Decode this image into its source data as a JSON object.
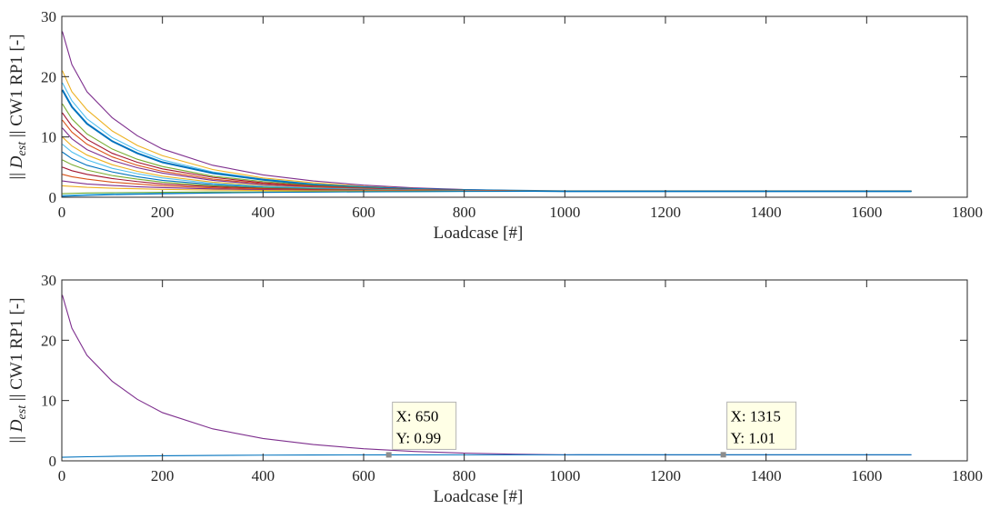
{
  "chart_data": [
    {
      "type": "line",
      "xlabel": "Loadcase [#]",
      "ylabel_prefix": "|| ",
      "ylabel_symbol": "D",
      "ylabel_subscript": "est",
      "ylabel_suffix": " || CW1 RP1 [-]",
      "xlim": [
        0,
        1800
      ],
      "ylim": [
        0,
        30
      ],
      "xticks": [
        "0",
        "200",
        "400",
        "600",
        "800",
        "1000",
        "1200",
        "1400",
        "1600",
        "1800"
      ],
      "yticks": [
        "0",
        "10",
        "20",
        "30"
      ],
      "grid": false,
      "series": [
        {
          "color": "#7E2F8E",
          "x": [
            1,
            20,
            50,
            100,
            150,
            200,
            300,
            400,
            500,
            600,
            700,
            800,
            900,
            1000,
            1200,
            1400,
            1689
          ],
          "y": [
            27.5,
            22.0,
            17.5,
            13.2,
            10.2,
            8.0,
            5.3,
            3.7,
            2.7,
            2.0,
            1.55,
            1.28,
            1.1,
            1.0,
            0.98,
            0.98,
            0.98
          ]
        },
        {
          "color": "#EDB120",
          "x": [
            1,
            20,
            50,
            100,
            150,
            200,
            300,
            400,
            500,
            600,
            700,
            800,
            1000,
            1200,
            1689
          ],
          "y": [
            21.0,
            17.5,
            14.5,
            11.0,
            8.6,
            6.9,
            4.6,
            3.2,
            2.4,
            1.8,
            1.45,
            1.22,
            1.0,
            0.99,
            0.99
          ]
        },
        {
          "color": "#4DBEEE",
          "x": [
            1,
            20,
            50,
            100,
            150,
            200,
            300,
            400,
            500,
            600,
            700,
            800,
            1000,
            1200,
            1689
          ],
          "y": [
            19.0,
            16.0,
            13.0,
            9.9,
            7.8,
            6.2,
            4.2,
            3.0,
            2.2,
            1.7,
            1.4,
            1.2,
            1.0,
            0.99,
            0.99
          ]
        },
        {
          "color": "#0072BD",
          "x": [
            1,
            20,
            50,
            100,
            150,
            200,
            300,
            400,
            500,
            600,
            700,
            800,
            1000,
            1200,
            1689
          ],
          "y": [
            17.8,
            15.0,
            12.2,
            9.3,
            7.3,
            5.8,
            4.0,
            2.9,
            2.1,
            1.65,
            1.35,
            1.18,
            1.0,
            0.99,
            0.99
          ]
        },
        {
          "color": "#77AC30",
          "x": [
            1,
            20,
            50,
            100,
            150,
            200,
            300,
            400,
            500,
            600,
            700,
            800,
            1000,
            1200,
            1689
          ],
          "y": [
            15.5,
            13.0,
            10.5,
            8.0,
            6.3,
            5.1,
            3.5,
            2.6,
            1.95,
            1.55,
            1.3,
            1.15,
            1.0,
            0.99,
            0.99
          ]
        },
        {
          "color": "#A2142F",
          "x": [
            1,
            20,
            50,
            100,
            150,
            200,
            300,
            400,
            500,
            600,
            700,
            800,
            1000,
            1200,
            1689
          ],
          "y": [
            14.0,
            11.8,
            9.6,
            7.3,
            5.8,
            4.7,
            3.3,
            2.4,
            1.85,
            1.5,
            1.27,
            1.13,
            1.0,
            0.99,
            0.99
          ]
        },
        {
          "color": "#D95319",
          "x": [
            1,
            20,
            50,
            100,
            150,
            200,
            300,
            400,
            500,
            600,
            700,
            800,
            1000,
            1200,
            1689
          ],
          "y": [
            12.8,
            10.8,
            8.8,
            6.7,
            5.3,
            4.3,
            3.0,
            2.25,
            1.75,
            1.45,
            1.24,
            1.12,
            1.0,
            0.99,
            0.99
          ]
        },
        {
          "color": "#7E2F8E",
          "x": [
            1,
            20,
            50,
            100,
            150,
            200,
            300,
            400,
            500,
            600,
            700,
            800,
            1000,
            1200,
            1689
          ],
          "y": [
            11.5,
            9.7,
            7.9,
            6.1,
            4.9,
            4.0,
            2.8,
            2.1,
            1.65,
            1.4,
            1.22,
            1.1,
            1.0,
            0.99,
            0.99
          ]
        },
        {
          "color": "#EDB120",
          "x": [
            1,
            20,
            50,
            100,
            150,
            200,
            300,
            400,
            500,
            600,
            700,
            800,
            1000,
            1200,
            1689
          ],
          "y": [
            10.0,
            8.5,
            7.0,
            5.4,
            4.3,
            3.5,
            2.5,
            1.9,
            1.55,
            1.33,
            1.18,
            1.08,
            1.0,
            0.99,
            0.99
          ]
        },
        {
          "color": "#4DBEEE",
          "x": [
            1,
            20,
            50,
            100,
            150,
            200,
            300,
            400,
            500,
            600,
            700,
            800,
            1000,
            1200,
            1689
          ],
          "y": [
            8.8,
            7.5,
            6.2,
            4.8,
            3.9,
            3.2,
            2.3,
            1.8,
            1.5,
            1.3,
            1.16,
            1.07,
            1.0,
            0.99,
            0.99
          ]
        },
        {
          "color": "#0072BD",
          "x": [
            1,
            20,
            50,
            100,
            150,
            200,
            300,
            400,
            500,
            600,
            700,
            800,
            1000,
            1200,
            1689
          ],
          "y": [
            7.5,
            6.4,
            5.3,
            4.2,
            3.4,
            2.8,
            2.1,
            1.65,
            1.4,
            1.25,
            1.13,
            1.06,
            1.0,
            0.99,
            0.99
          ]
        },
        {
          "color": "#77AC30",
          "x": [
            1,
            20,
            50,
            100,
            150,
            200,
            300,
            400,
            500,
            600,
            700,
            800,
            1000,
            1200,
            1689
          ],
          "y": [
            6.2,
            5.4,
            4.5,
            3.6,
            3.0,
            2.5,
            1.9,
            1.55,
            1.33,
            1.2,
            1.1,
            1.05,
            1.0,
            0.99,
            0.99
          ]
        },
        {
          "color": "#A2142F",
          "x": [
            1,
            20,
            50,
            100,
            150,
            200,
            300,
            400,
            500,
            600,
            700,
            800,
            1000,
            1200,
            1689
          ],
          "y": [
            5.0,
            4.4,
            3.8,
            3.1,
            2.6,
            2.2,
            1.75,
            1.45,
            1.27,
            1.16,
            1.08,
            1.04,
            1.0,
            0.99,
            0.99
          ]
        },
        {
          "color": "#D95319",
          "x": [
            1,
            20,
            50,
            100,
            150,
            200,
            300,
            400,
            500,
            600,
            700,
            800,
            1000,
            1200,
            1689
          ],
          "y": [
            3.8,
            3.4,
            3.0,
            2.5,
            2.2,
            1.9,
            1.55,
            1.35,
            1.2,
            1.12,
            1.06,
            1.03,
            1.0,
            0.99,
            0.99
          ]
        },
        {
          "color": "#7E2F8E",
          "x": [
            1,
            20,
            50,
            100,
            150,
            200,
            300,
            400,
            500,
            600,
            700,
            800,
            1000,
            1200,
            1689
          ],
          "y": [
            2.7,
            2.5,
            2.2,
            1.95,
            1.75,
            1.6,
            1.38,
            1.24,
            1.14,
            1.08,
            1.04,
            1.02,
            1.0,
            0.99,
            0.99
          ]
        },
        {
          "color": "#EDB120",
          "x": [
            1,
            20,
            50,
            100,
            150,
            200,
            300,
            400,
            500,
            600,
            700,
            800,
            1000,
            1200,
            1689
          ],
          "y": [
            1.9,
            1.8,
            1.65,
            1.5,
            1.4,
            1.3,
            1.2,
            1.12,
            1.07,
            1.04,
            1.02,
            1.01,
            1.0,
            0.99,
            0.99
          ]
        },
        {
          "color": "#4DBEEE",
          "x": [
            1,
            50,
            100,
            200,
            300,
            400,
            600,
            800,
            1000,
            1200,
            1689
          ],
          "y": [
            0.3,
            0.45,
            0.55,
            0.68,
            0.77,
            0.84,
            0.92,
            0.97,
            0.99,
            0.99,
            0.99
          ]
        },
        {
          "color": "#77AC30",
          "x": [
            1,
            50,
            100,
            200,
            300,
            400,
            600,
            800,
            1000,
            1200,
            1689
          ],
          "y": [
            0.6,
            0.7,
            0.75,
            0.82,
            0.87,
            0.9,
            0.95,
            0.98,
            0.99,
            0.99,
            0.99
          ]
        },
        {
          "color": "#0072BD",
          "x": [
            1,
            50,
            100,
            200,
            300,
            400,
            600,
            800,
            1000,
            1200,
            1689
          ],
          "y": [
            0.15,
            0.3,
            0.42,
            0.58,
            0.7,
            0.8,
            0.9,
            0.96,
            0.99,
            0.99,
            0.99
          ]
        }
      ]
    },
    {
      "type": "line",
      "xlabel": "Loadcase [#]",
      "ylabel_prefix": "|| ",
      "ylabel_symbol": "D",
      "ylabel_subscript": "est",
      "ylabel_suffix": " || CW1 RP1 [-]",
      "xlim": [
        0,
        1800
      ],
      "ylim": [
        0,
        30
      ],
      "xticks": [
        "0",
        "200",
        "400",
        "600",
        "800",
        "1000",
        "1200",
        "1400",
        "1600",
        "1800"
      ],
      "yticks": [
        "0",
        "10",
        "20",
        "30"
      ],
      "grid": false,
      "series": [
        {
          "color": "#7E2F8E",
          "x": [
            1,
            20,
            50,
            100,
            150,
            200,
            300,
            400,
            500,
            600,
            700,
            800,
            900,
            1000,
            1200,
            1400,
            1689
          ],
          "y": [
            27.5,
            22.0,
            17.5,
            13.2,
            10.2,
            8.0,
            5.3,
            3.7,
            2.7,
            2.0,
            1.55,
            1.28,
            1.1,
            1.0,
            0.98,
            0.98,
            0.98
          ]
        },
        {
          "color": "#0072BD",
          "x": [
            1,
            50,
            100,
            200,
            300,
            400,
            500,
            650,
            800,
            1000,
            1200,
            1315,
            1689
          ],
          "y": [
            0.6,
            0.68,
            0.75,
            0.84,
            0.9,
            0.94,
            0.97,
            0.99,
            1.0,
            1.0,
            1.01,
            1.01,
            1.01
          ]
        }
      ],
      "datatips": [
        {
          "x": 650,
          "y": 0.99,
          "x_text": "X: 650",
          "y_text": "Y: 0.99"
        },
        {
          "x": 1315,
          "y": 1.01,
          "x_text": "X: 1315",
          "y_text": "Y: 1.01"
        }
      ]
    }
  ]
}
